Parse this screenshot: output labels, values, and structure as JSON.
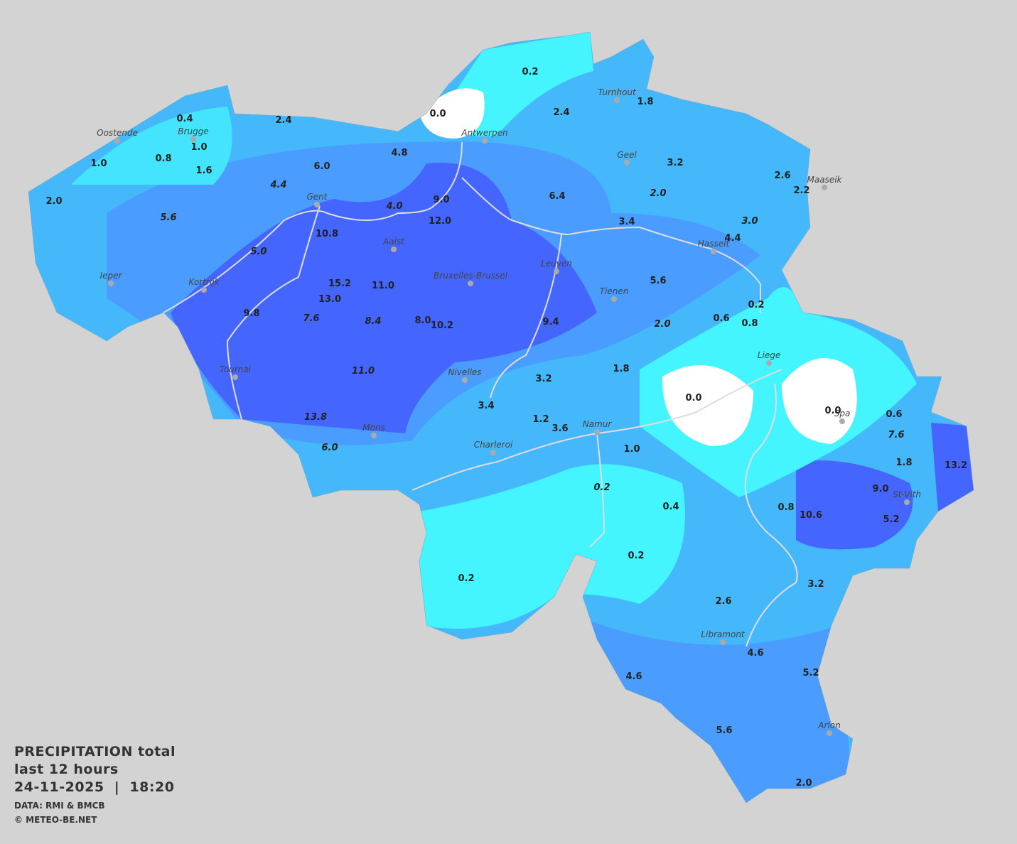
{
  "title": {
    "line1": "PRECIPITATION total",
    "line2": "last 12 hours",
    "line3": "24-11-2025  |  18:20"
  },
  "credits": {
    "data": "DATA: RMI & BMCB",
    "copyright": "© METEO-BE.NET"
  },
  "cities": [
    "Oostende",
    "Brugge",
    "Gent",
    "Antwerpen",
    "Turnhout",
    "Geel",
    "Maaseik",
    "Hasselt",
    "Aalst",
    "Bruxelles-Brussel",
    "Leuven",
    "Tienen",
    "Ieper",
    "Kortrijk",
    "Tournai",
    "Nivelles",
    "Liege",
    "Spa",
    "Namur",
    "Charleroi",
    "Mons",
    "St-Vith",
    "Libramont",
    "Arlon"
  ],
  "readings": [
    {
      "label": "0.2",
      "italic": false
    },
    {
      "label": "0.0",
      "italic": false
    },
    {
      "label": "2.4",
      "italic": false
    },
    {
      "label": "1.8",
      "italic": false
    },
    {
      "label": "0.4",
      "italic": false
    },
    {
      "label": "2.4",
      "italic": false
    },
    {
      "label": "1.0",
      "italic": false
    },
    {
      "label": "0.8",
      "italic": false
    },
    {
      "label": "1.6",
      "italic": false
    },
    {
      "label": "4.8",
      "italic": false
    },
    {
      "label": "1.0",
      "italic": false
    },
    {
      "label": "6.0",
      "italic": false
    },
    {
      "label": "3.2",
      "italic": false
    },
    {
      "label": "2.6",
      "italic": false
    },
    {
      "label": "2.2",
      "italic": false
    },
    {
      "label": "4.4",
      "italic": true
    },
    {
      "label": "2.0",
      "italic": true
    },
    {
      "label": "6.4",
      "italic": false
    },
    {
      "label": "9.0",
      "italic": false
    },
    {
      "label": "4.0",
      "italic": true
    },
    {
      "label": "2.0",
      "italic": false
    },
    {
      "label": "5.6",
      "italic": true
    },
    {
      "label": "12.0",
      "italic": false
    },
    {
      "label": "3.4",
      "italic": false
    },
    {
      "label": "3.0",
      "italic": true
    },
    {
      "label": "10.8",
      "italic": false
    },
    {
      "label": "4.4",
      "italic": false
    },
    {
      "label": "5.0",
      "italic": true
    },
    {
      "label": "5.6",
      "italic": false
    },
    {
      "label": "15.2",
      "italic": false
    },
    {
      "label": "11.0",
      "italic": false
    },
    {
      "label": "13.0",
      "italic": false
    },
    {
      "label": "0.2",
      "italic": false
    },
    {
      "label": "9.8",
      "italic": false
    },
    {
      "label": "7.6",
      "italic": true
    },
    {
      "label": "8.4",
      "italic": true
    },
    {
      "label": "8.0",
      "italic": false
    },
    {
      "label": "10.2",
      "italic": false
    },
    {
      "label": "9.4",
      "italic": false
    },
    {
      "label": "2.0",
      "italic": true
    },
    {
      "label": "0.6",
      "italic": false
    },
    {
      "label": "0.8",
      "italic": false
    },
    {
      "label": "11.0",
      "italic": true
    },
    {
      "label": "1.8",
      "italic": false
    },
    {
      "label": "3.2",
      "italic": false
    },
    {
      "label": "0.0",
      "italic": false
    },
    {
      "label": "3.4",
      "italic": false
    },
    {
      "label": "0.0",
      "italic": false
    },
    {
      "label": "0.6",
      "italic": false
    },
    {
      "label": "13.8",
      "italic": true
    },
    {
      "label": "1.2",
      "italic": false
    },
    {
      "label": "3.6",
      "italic": false
    },
    {
      "label": "7.6",
      "italic": true
    },
    {
      "label": "6.0",
      "italic": true
    },
    {
      "label": "1.0",
      "italic": false
    },
    {
      "label": "1.8",
      "italic": false
    },
    {
      "label": "13.2",
      "italic": false
    },
    {
      "label": "0.2",
      "italic": true
    },
    {
      "label": "9.0",
      "italic": false
    },
    {
      "label": "0.4",
      "italic": false
    },
    {
      "label": "0.8",
      "italic": false
    },
    {
      "label": "10.6",
      "italic": false
    },
    {
      "label": "5.2",
      "italic": false
    },
    {
      "label": "0.2",
      "italic": false
    },
    {
      "label": "0.2",
      "italic": false
    },
    {
      "label": "3.2",
      "italic": false
    },
    {
      "label": "2.6",
      "italic": false
    },
    {
      "label": "4.6",
      "italic": false
    },
    {
      "label": "4.6",
      "italic": false
    },
    {
      "label": "5.2",
      "italic": false
    },
    {
      "label": "5.6",
      "italic": false
    },
    {
      "label": "2.0",
      "italic": false
    }
  ]
}
